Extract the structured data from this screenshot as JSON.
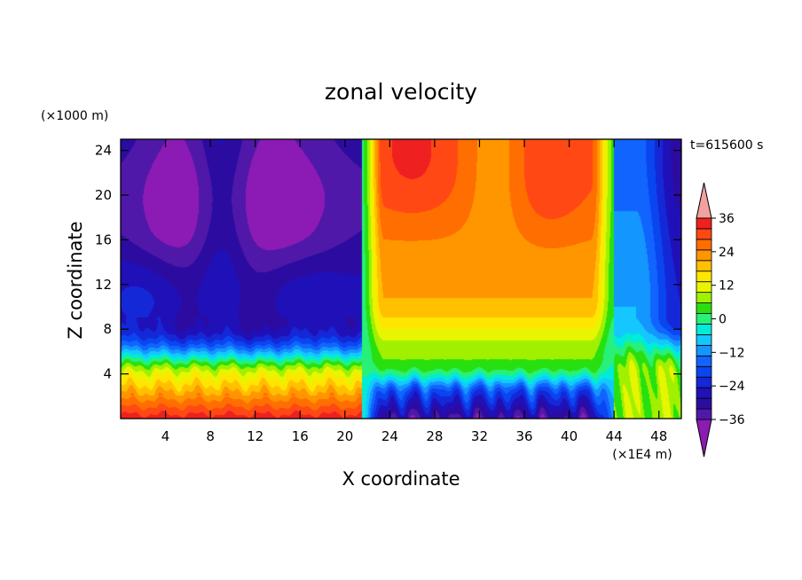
{
  "chart_data": {
    "type": "heatmap",
    "title": "zonal velocity",
    "xlabel": "X coordinate",
    "ylabel": "Z coordinate",
    "x_units": "(×1E4 m)",
    "y_units": "(×1000 m)",
    "time_label": "t=615600 s",
    "xlim": [
      0,
      50
    ],
    "ylim": [
      0,
      25
    ],
    "x_ticks": [
      4,
      8,
      12,
      16,
      20,
      24,
      28,
      32,
      36,
      40,
      44,
      48
    ],
    "y_ticks": [
      4,
      8,
      12,
      16,
      20,
      24
    ],
    "colorbar": {
      "levels": [
        -40,
        -36,
        -32,
        -28,
        -24,
        -20,
        -16,
        -12,
        -8,
        -4,
        0,
        4,
        8,
        12,
        16,
        20,
        24,
        28,
        32,
        36,
        40
      ],
      "tick_labels": [
        "36",
        "24",
        "12",
        "0",
        "−12",
        "−24",
        "−36"
      ],
      "tick_values": [
        36,
        24,
        12,
        0,
        -12,
        -24,
        -36
      ],
      "colors": [
        "#8c1ab4",
        "#5018a8",
        "#2c0ca0",
        "#2010b8",
        "#1428d8",
        "#0a46f0",
        "#1264ff",
        "#1496ff",
        "#14c8ff",
        "#00ecd8",
        "#28f078",
        "#28e010",
        "#a0f000",
        "#e6f500",
        "#ffe600",
        "#ffc000",
        "#ff9600",
        "#ff6e00",
        "#ff4814",
        "#ee2020",
        "#f5a0a0"
      ]
    },
    "regions": [
      {
        "x_range": [
          0,
          21.5
        ],
        "upper_layer_approx": -32,
        "lower_layer_approx": 36
      },
      {
        "x_range": [
          21.5,
          44
        ],
        "upper_layer_approx": 32,
        "lower_layer_approx": -32
      },
      {
        "x_range": [
          44,
          50
        ],
        "upper_layer_approx": -20,
        "lower_layer_approx": 10
      }
    ]
  }
}
